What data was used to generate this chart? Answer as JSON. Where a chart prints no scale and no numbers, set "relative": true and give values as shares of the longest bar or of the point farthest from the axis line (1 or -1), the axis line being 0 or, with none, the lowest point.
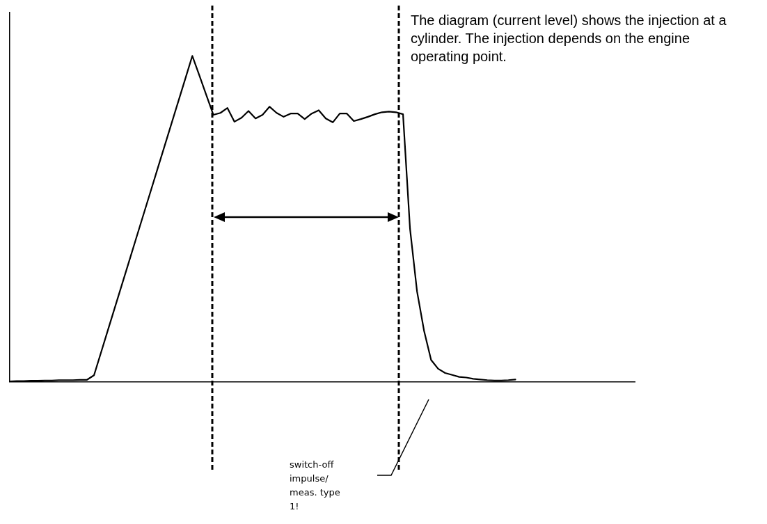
{
  "chart_data": {
    "type": "line",
    "relative": true,
    "grid": false,
    "legend": false,
    "marker": "none",
    "line_style": "solid",
    "categories": [
      null,
      null,
      null,
      null,
      null,
      null,
      null,
      null,
      null,
      null,
      null,
      null,
      null,
      null,
      null,
      null,
      null,
      null,
      null,
      null,
      null,
      null,
      null,
      null,
      null,
      null,
      null,
      null,
      null,
      null,
      null,
      null,
      null,
      null,
      null,
      null,
      null,
      null,
      null,
      null,
      null,
      null,
      null,
      null,
      null,
      null,
      null,
      null,
      null,
      null,
      null,
      null,
      null,
      null,
      null,
      null,
      null,
      null,
      null,
      null,
      null,
      null,
      null,
      null,
      null,
      null,
      null,
      null,
      null,
      null,
      null,
      null,
      null,
      null,
      null,
      null,
      null,
      null,
      null,
      null,
      null,
      null,
      null,
      null,
      null,
      null,
      null,
      null,
      null,
      null
    ],
    "series": [
      {
        "color": "#000000",
        "values": [
          0.001,
          0.002,
          0.002,
          0.003,
          0.003,
          0.004,
          0.004,
          0.005,
          0.005,
          0.005,
          0.006,
          0.006,
          0.02,
          0.09,
          0.16,
          0.23,
          0.3,
          0.37,
          0.44,
          0.51,
          0.58,
          0.65,
          0.72,
          0.79,
          0.86,
          0.93,
          1,
          0.94,
          0.879,
          0.819,
          0.825,
          0.84,
          0.798,
          0.81,
          0.831,
          0.808,
          0.819,
          0.844,
          0.825,
          0.813,
          0.823,
          0.823,
          0.806,
          0.823,
          0.833,
          0.808,
          0.796,
          0.823,
          0.823,
          0.8,
          0.806,
          0.813,
          0.821,
          0.827,
          0.829,
          0.827,
          0.821,
          0.469,
          0.277,
          0.156,
          0.067,
          0.04,
          0.027,
          0.021,
          0.015,
          0.013,
          0.009,
          0.007,
          0.005,
          0.004,
          0.004,
          0.005,
          0.007,
          null,
          null,
          null,
          null,
          null,
          null,
          null,
          null,
          null,
          null,
          null,
          null,
          null,
          null,
          null,
          null,
          null
        ]
      }
    ],
    "annotations": [
      "The diagram (current level) shows the injection at a cylinder. The injection depends on the engine operating point.",
      "switch-off impulse/ meas. type 1!"
    ]
  }
}
